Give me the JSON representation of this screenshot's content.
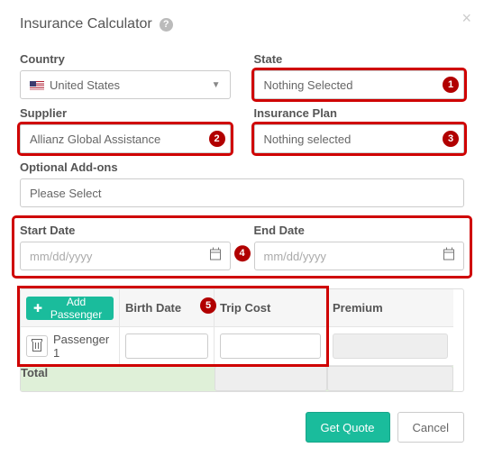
{
  "modal": {
    "title": "Insurance Calculator",
    "help_color": "#bbbbbb",
    "close_label": "×"
  },
  "form": {
    "country": {
      "label": "Country",
      "value": "United States"
    },
    "state": {
      "label": "State",
      "value": "Nothing Selected"
    },
    "supplier": {
      "label": "Supplier",
      "value": "Allianz Global Assistance"
    },
    "plan": {
      "label": "Insurance Plan",
      "value": "Nothing selected"
    },
    "addons": {
      "label": "Optional Add-ons",
      "value": "Please Select"
    },
    "start": {
      "label": "Start Date",
      "placeholder": "mm/dd/yyyy"
    },
    "end": {
      "label": "End Date",
      "placeholder": "mm/dd/yyyy"
    }
  },
  "table": {
    "add_label": "Add Passenger",
    "cols": {
      "birth": "Birth Date",
      "trip": "Trip Cost",
      "premium": "Premium"
    },
    "rows": [
      {
        "name": "Passenger 1"
      }
    ],
    "total_label": "Total"
  },
  "callouts": {
    "state": "1",
    "supplier": "2",
    "plan": "3",
    "dates": "4",
    "pax": "5",
    "color": "#b10000"
  },
  "footer": {
    "quote": "Get Quote",
    "cancel": "Cancel"
  },
  "colors": {
    "highlight": "#cf0000",
    "primary": "#1abc9c",
    "total_bg": "#dff0d8"
  }
}
